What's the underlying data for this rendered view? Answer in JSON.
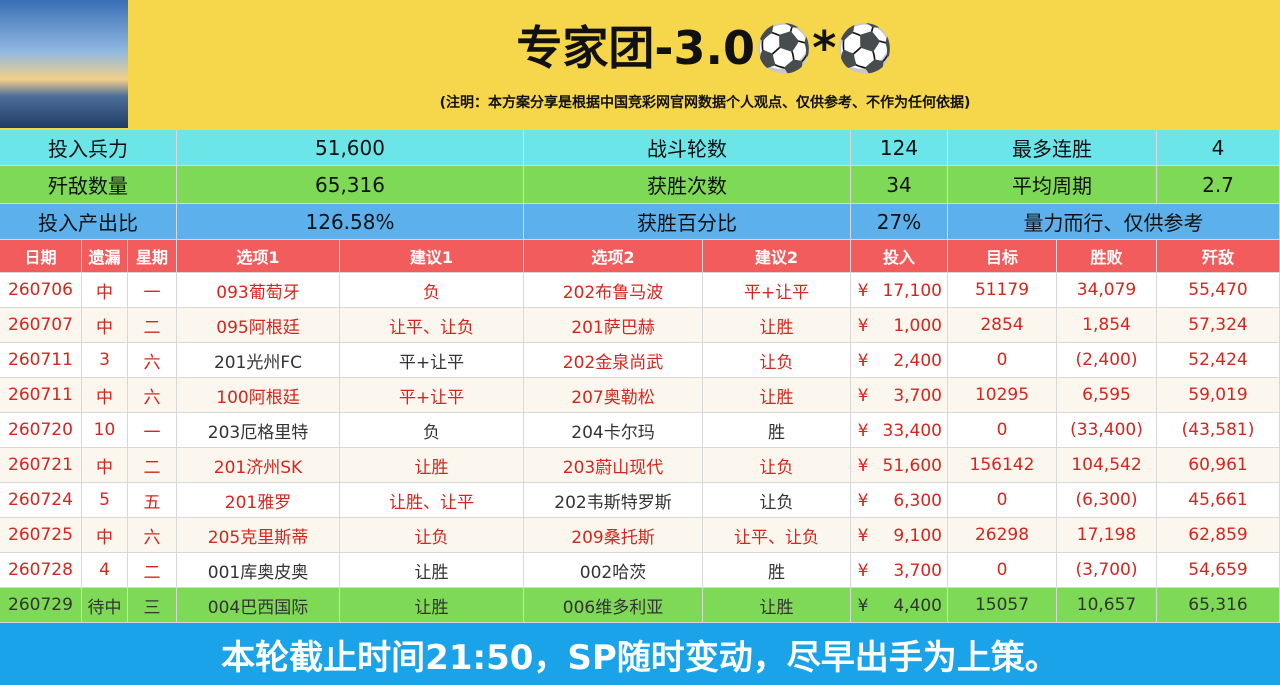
{
  "header": {
    "title": "专家团-3.0⚽*⚽",
    "note": "(注明：本方案分享是根据中国竞彩网官网数据个人观点、仅供参考、不作为任何依据)"
  },
  "summary": [
    [
      "投入兵力",
      "51,600",
      "战斗轮数",
      "124",
      "最多连胜",
      "4"
    ],
    [
      "歼敌数量",
      "65,316",
      "获胜次数",
      "34",
      "平均周期",
      "2.7"
    ],
    [
      "投入产出比",
      "126.58%",
      "获胜百分比",
      "27%",
      "量力而行、仅供参考"
    ]
  ],
  "table": {
    "columns": [
      "日期",
      "遗漏",
      "星期",
      "选项1",
      "建议1",
      "选项2",
      "建议2",
      "投入",
      "目标",
      "胜败",
      "歼敌"
    ],
    "rows": [
      [
        "260706",
        "中",
        "一",
        "093葡萄牙",
        "负",
        "202布鲁马波",
        "平+让平",
        "¥",
        "17,100",
        "51179",
        "34,079",
        "55,470"
      ],
      [
        "260707",
        "中",
        "二",
        "095阿根廷",
        "让平、让负",
        "201萨巴赫",
        "让胜",
        "¥",
        "1,000",
        "2854",
        "1,854",
        "57,324"
      ],
      [
        "260711",
        "3",
        "六",
        "201光州FC",
        "平+让平",
        "202金泉尚武",
        "让负",
        "¥",
        "2,400",
        "0",
        "(2,400)",
        "52,424"
      ],
      [
        "260711",
        "中",
        "六",
        "100阿根廷",
        "平+让平",
        "207奥勒松",
        "让胜",
        "¥",
        "3,700",
        "10295",
        "6,595",
        "59,019"
      ],
      [
        "260720",
        "10",
        "一",
        "203厄格里特",
        "负",
        "204卡尔玛",
        "胜",
        "¥",
        "33,400",
        "0",
        "(33,400)",
        "(43,581)"
      ],
      [
        "260721",
        "中",
        "二",
        "201济州SK",
        "让胜",
        "203蔚山现代",
        "让负",
        "¥",
        "51,600",
        "156142",
        "104,542",
        "60,961"
      ],
      [
        "260724",
        "5",
        "五",
        "201雅罗",
        "让胜、让平",
        "202韦斯特罗斯",
        "让负",
        "¥",
        "6,300",
        "0",
        "(6,300)",
        "45,661"
      ],
      [
        "260725",
        "中",
        "六",
        "205克里斯蒂",
        "让负",
        "209桑托斯",
        "让平、让负",
        "¥",
        "9,100",
        "26298",
        "17,198",
        "62,859"
      ],
      [
        "260728",
        "4",
        "二",
        "001库奥皮奥",
        "让胜",
        "002哈茨",
        "胜",
        "¥",
        "3,700",
        "0",
        "(3,700)",
        "54,659"
      ],
      [
        "260729",
        "待中",
        "三",
        "004巴西国际",
        "让胜",
        "006维多利亚",
        "让胜",
        "¥",
        "4,400",
        "15057",
        "10,657",
        "65,316"
      ]
    ]
  },
  "footer": "本轮截止时间21:50，SP随时变动，尽早出手为上策。"
}
